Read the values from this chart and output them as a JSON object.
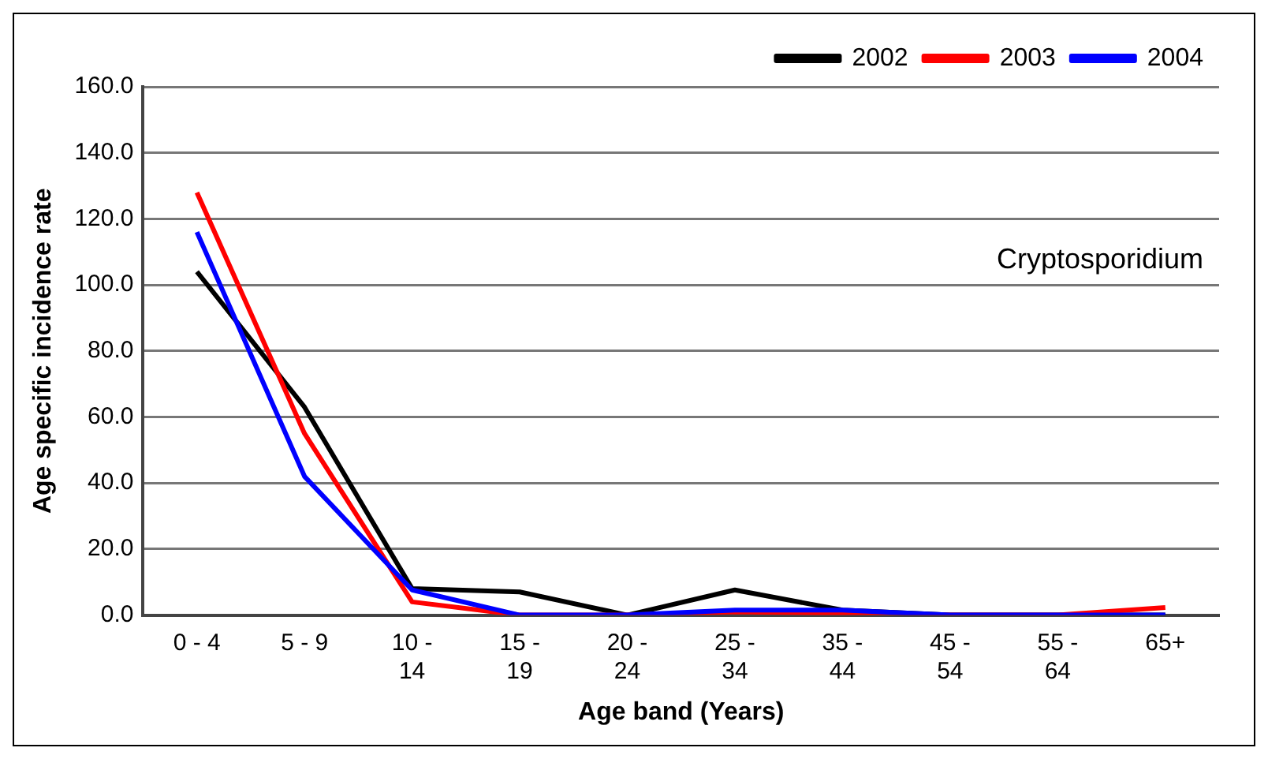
{
  "chart_data": {
    "type": "line",
    "xlabel": "Age band (Years)",
    "ylabel": "Age specific incidence rate",
    "categories": [
      "0 - 4",
      "5 - 9",
      "10 - 14",
      "15 - 19",
      "20 - 24",
      "25 - 34",
      "35 - 44",
      "45 - 54",
      "55 - 64",
      "65+"
    ],
    "series": [
      {
        "name": "2002",
        "color": "#000000",
        "values": [
          104,
          63,
          8,
          7,
          0,
          7.6,
          1.5,
          0,
          0,
          0
        ]
      },
      {
        "name": "2003",
        "color": "#ff0000",
        "values": [
          128,
          55,
          4,
          0,
          0,
          1,
          0.5,
          0,
          0,
          2.3
        ]
      },
      {
        "name": "2004",
        "color": "#0000ff",
        "values": [
          116,
          42,
          7.6,
          0,
          0,
          1.5,
          1.5,
          0,
          0,
          0
        ]
      }
    ],
    "ylim": [
      0,
      160
    ],
    "yticks": [
      {
        "value": 0,
        "label": "0.0"
      },
      {
        "value": 20,
        "label": "20.0"
      },
      {
        "value": 40,
        "label": "40.0"
      },
      {
        "value": 60,
        "label": "60.0"
      },
      {
        "value": 80,
        "label": "80.0"
      },
      {
        "value": 100,
        "label": "100.0"
      },
      {
        "value": 120,
        "label": "120.0"
      },
      {
        "value": 140,
        "label": "140.0"
      },
      {
        "value": 160,
        "label": "160.0"
      }
    ],
    "grid": "y",
    "legend": "top right",
    "marker": "none",
    "line_style": "solid",
    "annotations": [
      "Cryptosporidium"
    ]
  }
}
